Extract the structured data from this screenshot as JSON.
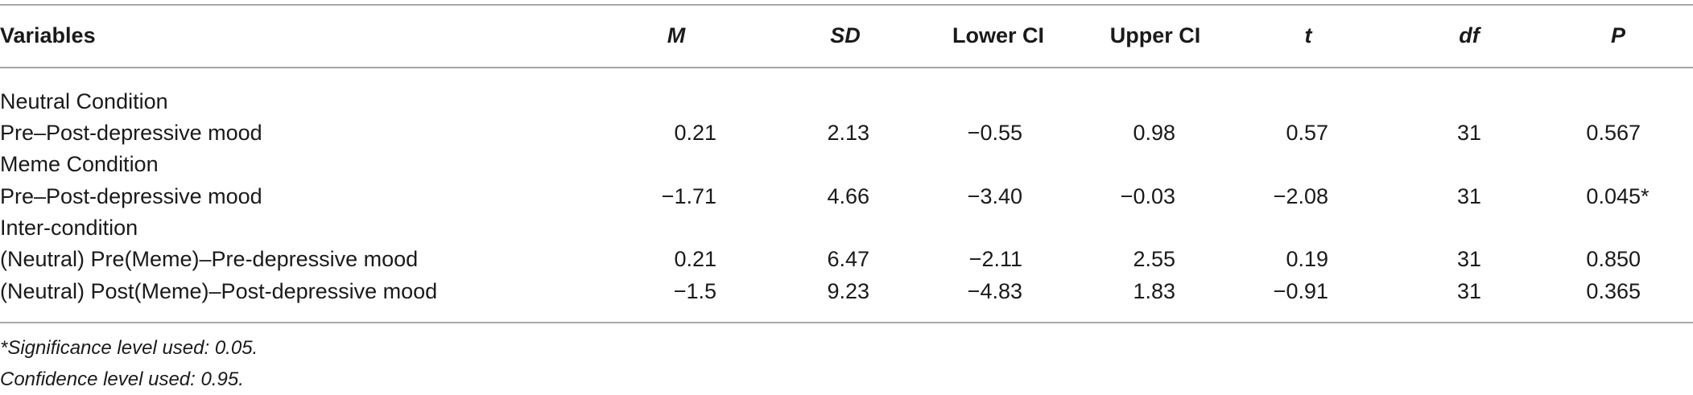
{
  "table": {
    "headers": {
      "variables": "Variables",
      "m": "M",
      "sd": "SD",
      "lower_ci": "Lower CI",
      "upper_ci": "Upper CI",
      "t": "t",
      "df": "df",
      "p": "P"
    },
    "groups": [
      {
        "label": "Neutral Condition",
        "rows": [
          {
            "variable": "Pre–Post-depressive mood",
            "m": "0.21",
            "sd": "2.13",
            "lower_ci": "−0.55",
            "upper_ci": "0.98",
            "t": "0.57",
            "df": "31",
            "p": "0.567",
            "sig": ""
          }
        ]
      },
      {
        "label": "Meme Condition",
        "rows": [
          {
            "variable": "Pre–Post-depressive mood",
            "m": "−1.71",
            "sd": "4.66",
            "lower_ci": "−3.40",
            "upper_ci": "−0.03",
            "t": "−2.08",
            "df": "31",
            "p": "0.045",
            "sig": "*"
          }
        ]
      },
      {
        "label": "Inter-condition",
        "rows": [
          {
            "variable": "(Neutral) Pre(Meme)–Pre-depressive mood",
            "m": "0.21",
            "sd": "6.47",
            "lower_ci": "−2.11",
            "upper_ci": "2.55",
            "t": "0.19",
            "df": "31",
            "p": "0.850",
            "sig": ""
          },
          {
            "variable": "(Neutral) Post(Meme)–Post-depressive mood",
            "m": "−1.5",
            "sd": "9.23",
            "lower_ci": "−4.83",
            "upper_ci": "1.83",
            "t": "−0.91",
            "df": "31",
            "p": "0.365",
            "sig": ""
          }
        ]
      }
    ]
  },
  "notes": {
    "significance": "*Significance level used: 0.05.",
    "confidence": "Confidence level used: 0.95."
  }
}
